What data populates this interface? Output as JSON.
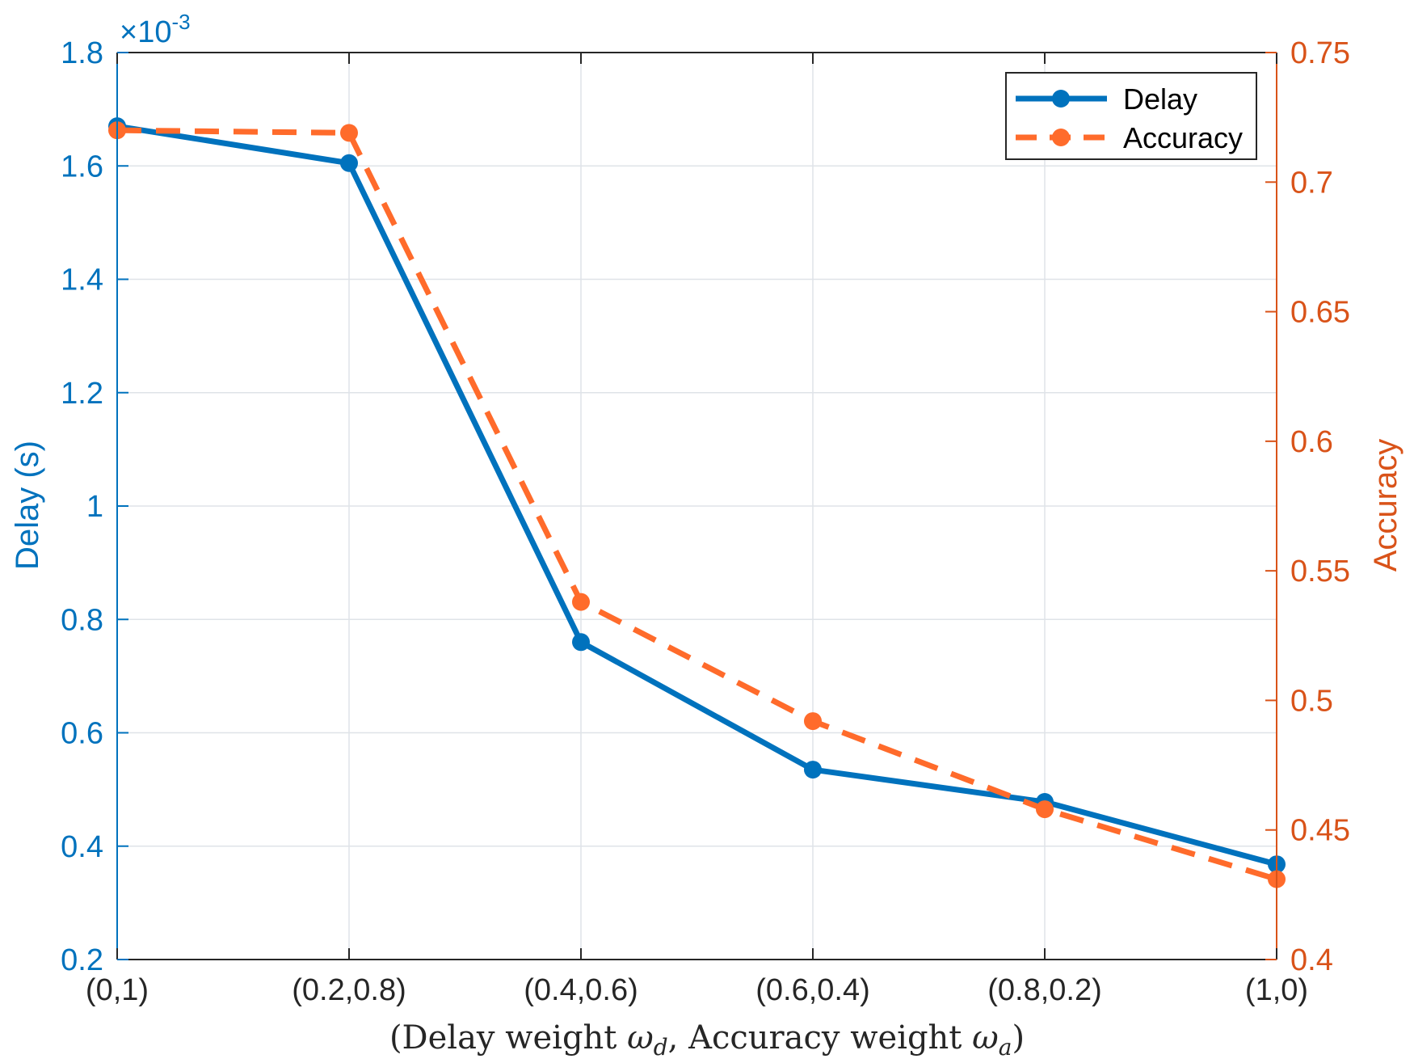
{
  "chart_data": {
    "type": "line",
    "categories": [
      "(0,1)",
      "(0.2,0.8)",
      "(0.4,0.6)",
      "(0.6,0.4)",
      "(0.8,0.2)",
      "(1,0)"
    ],
    "xlabel": "(Delay weight ωd, Accuracy weight ωa)",
    "xlabel_parts": {
      "open": "(Delay weight ",
      "omega1": "ω",
      "sub1": "d",
      "mid": ", Accuracy weight ",
      "omega2": "ω",
      "sub2": "a",
      "close": ")"
    },
    "y_left": {
      "label": "Delay (s)",
      "lim": [
        0.2,
        1.8
      ],
      "ticks": [
        0.2,
        0.4,
        0.6,
        0.8,
        1,
        1.2,
        1.4,
        1.6,
        1.8
      ],
      "tick_labels": [
        "0.2",
        "0.4",
        "0.6",
        "0.8",
        "1",
        "1.2",
        "1.4",
        "1.6",
        "1.8"
      ],
      "exponent_base": "×10",
      "exponent_power": "-3",
      "color": "#0072BD"
    },
    "y_right": {
      "label": "Accuracy",
      "lim": [
        0.4,
        0.75
      ],
      "ticks": [
        0.4,
        0.45,
        0.5,
        0.55,
        0.6,
        0.65,
        0.7,
        0.75
      ],
      "tick_labels": [
        "0.4",
        "0.45",
        "0.5",
        "0.55",
        "0.6",
        "0.65",
        "0.7",
        "0.75"
      ],
      "color": "#D95319"
    },
    "series": [
      {
        "name": "Delay",
        "axis": "left",
        "values": [
          1.67,
          1.605,
          0.76,
          0.535,
          0.478,
          0.368
        ],
        "color": "#0072BD",
        "style": "solid"
      },
      {
        "name": "Accuracy",
        "axis": "right",
        "values": [
          0.72,
          0.719,
          0.538,
          0.492,
          0.458,
          0.431
        ],
        "color": "#FF6B2B",
        "style": "dashed"
      }
    ],
    "grid": true,
    "legend_position": "top-right"
  }
}
